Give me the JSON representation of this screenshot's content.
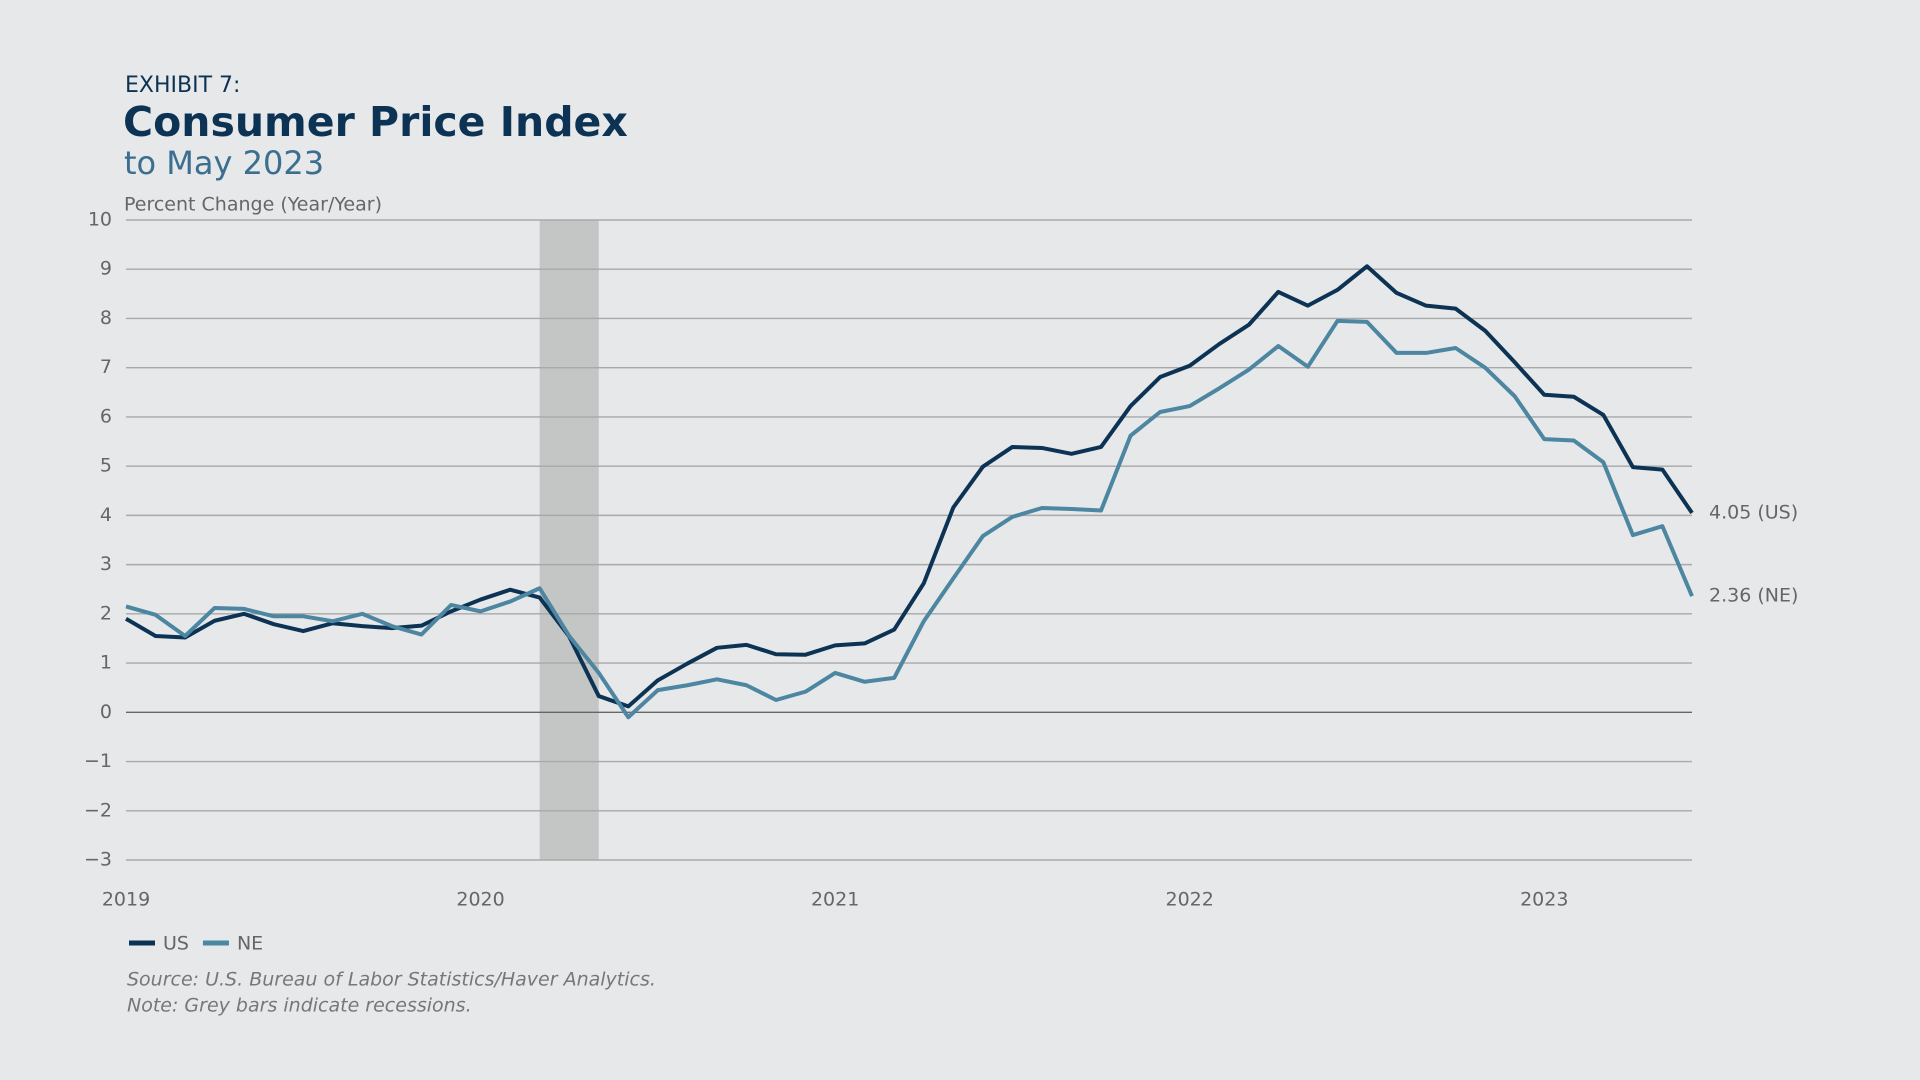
{
  "chart_data": {
    "type": "line",
    "exhibit": "EXHIBIT 7:",
    "title": "Consumer Price Index",
    "subtitle": "to May 2023",
    "y_label": "Percent Change (Year/Year)",
    "source": "Source: U.S. Bureau of Labor Statistics/Haver Analytics.",
    "note": "Note: Grey bars indicate recessions.",
    "x": [
      2019,
      2019.0833,
      2019.1667,
      2019.25,
      2019.3333,
      2019.4167,
      2019.5,
      2019.5833,
      2019.6667,
      2019.75,
      2019.8333,
      2019.9167,
      2020,
      2020.0833,
      2020.1667,
      2020.25,
      2020.3333,
      2020.4167,
      2020.5,
      2020.5833,
      2020.6667,
      2020.75,
      2020.8333,
      2020.9167,
      2021,
      2021.0833,
      2021.1667,
      2021.25,
      2021.3333,
      2021.4167,
      2021.5,
      2021.5833,
      2021.6667,
      2021.75,
      2021.8333,
      2021.9167,
      2022,
      2022.0833,
      2022.1667,
      2022.25,
      2022.3333,
      2022.4167,
      2022.5,
      2022.5833,
      2022.6667,
      2022.75,
      2022.8333,
      2022.9167,
      2023,
      2023.0833,
      2023.1667,
      2023.25,
      2023.3333,
      2023.4167
    ],
    "series": [
      {
        "name": "US",
        "color": "#0d3354",
        "values": [
          1.9,
          1.55,
          1.52,
          1.86,
          2.0,
          1.79,
          1.65,
          1.81,
          1.75,
          1.71,
          1.76,
          2.05,
          2.29,
          2.49,
          2.33,
          1.54,
          0.33,
          0.12,
          0.65,
          0.99,
          1.31,
          1.37,
          1.18,
          1.17,
          1.36,
          1.4,
          1.68,
          2.62,
          4.16,
          4.99,
          5.39,
          5.37,
          5.25,
          5.39,
          6.22,
          6.81,
          7.04,
          7.48,
          7.87,
          8.54,
          8.26,
          8.58,
          9.06,
          8.52,
          8.26,
          8.2,
          7.75,
          7.11,
          6.45,
          6.41,
          6.04,
          4.98,
          4.93,
          4.05
        ],
        "value_labels": [
          null,
          null,
          null,
          null,
          null,
          null,
          null,
          null,
          null,
          null,
          null,
          null,
          null,
          null,
          null,
          null,
          null,
          null,
          null,
          null,
          null,
          null,
          null,
          null,
          null,
          null,
          null,
          null,
          null,
          null,
          null,
          null,
          null,
          null,
          null,
          null,
          null,
          null,
          null,
          null,
          null,
          null,
          null,
          null,
          null,
          null,
          null,
          null,
          null,
          null,
          null,
          null,
          null,
          "4.05 (US)"
        ]
      },
      {
        "name": "NE",
        "color": "#4d86a0",
        "values": [
          2.15,
          1.98,
          1.55,
          2.12,
          2.1,
          1.95,
          1.95,
          1.85,
          2.0,
          1.75,
          1.58,
          2.18,
          2.05,
          2.25,
          2.52,
          1.55,
          0.8,
          -0.1,
          0.45,
          0.55,
          0.67,
          0.55,
          0.25,
          0.42,
          0.8,
          0.62,
          0.7,
          1.85,
          2.72,
          3.58,
          3.97,
          4.15,
          4.13,
          4.1,
          5.62,
          6.1,
          6.22,
          6.58,
          6.96,
          7.44,
          7.02,
          7.95,
          7.93,
          7.3,
          7.3,
          7.4,
          7.0,
          6.42,
          5.55,
          5.52,
          5.08,
          3.6,
          3.78,
          2.36
        ],
        "value_labels": [
          null,
          null,
          null,
          null,
          null,
          null,
          null,
          null,
          null,
          null,
          null,
          null,
          null,
          null,
          null,
          null,
          null,
          null,
          null,
          null,
          null,
          null,
          null,
          null,
          null,
          null,
          null,
          null,
          null,
          null,
          null,
          null,
          null,
          null,
          null,
          null,
          null,
          null,
          null,
          null,
          null,
          null,
          null,
          null,
          null,
          null,
          null,
          null,
          null,
          null,
          null,
          null,
          null,
          "2.36 (NE)"
        ]
      }
    ],
    "recessions": [
      {
        "start": 2020.1667,
        "end": 2020.3333,
        "color": "#c4c5c5"
      }
    ],
    "xlim": [
      2019,
      2023.4167
    ],
    "xticks": [
      2019,
      2020,
      2021,
      2022,
      2023
    ],
    "ylim": [
      -3,
      10
    ],
    "yticks": [
      {
        "value": -3,
        "label": "−3"
      },
      {
        "value": -2,
        "label": "−2"
      },
      {
        "value": -1,
        "label": "−1"
      },
      0,
      1,
      2,
      3,
      4,
      5,
      6,
      7,
      8,
      9,
      10
    ],
    "grid": true,
    "legend": "bottom-left"
  }
}
